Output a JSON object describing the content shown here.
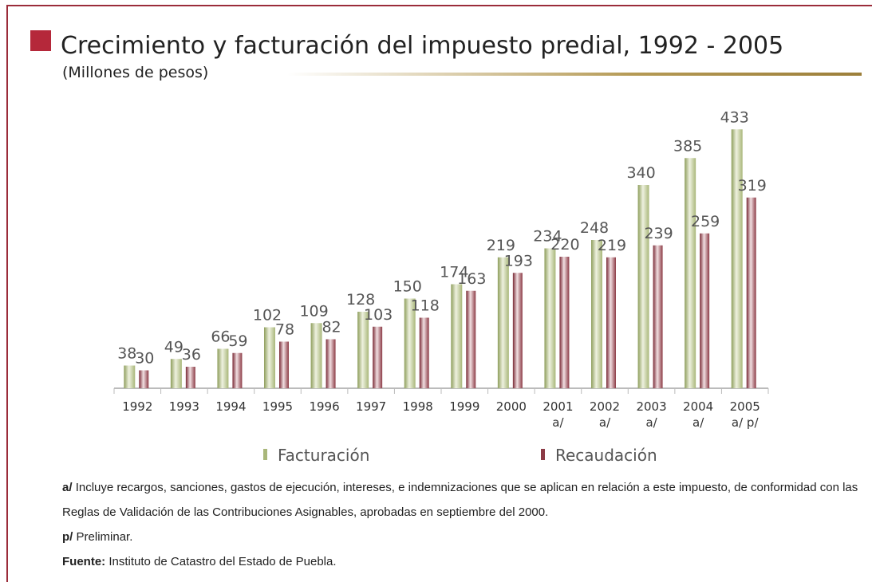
{
  "chart_data": {
    "type": "bar",
    "title": "Crecimiento y facturación del impuesto predial, 1992 - 2005",
    "subtitle": "(Millones de pesos)",
    "categories": [
      "1992",
      "1993",
      "1994",
      "1995",
      "1996",
      "1997",
      "1998",
      "1999",
      "2000",
      "2001 a/",
      "2002 a/",
      "2003 a/",
      "2004 a/",
      "2005 a/ p/"
    ],
    "series": [
      {
        "name": "Facturación",
        "color": "#a9b77a",
        "values": [
          38,
          49,
          66,
          102,
          109,
          128,
          150,
          174,
          219,
          234,
          248,
          340,
          385,
          433
        ]
      },
      {
        "name": "Recaudación",
        "color": "#8c3b46",
        "values": [
          30,
          36,
          59,
          78,
          82,
          103,
          118,
          163,
          193,
          220,
          219,
          239,
          259,
          319
        ]
      }
    ],
    "ylim": [
      0,
      450
    ],
    "legend": "bottom"
  },
  "notes": [
    {
      "label": "a/",
      "text": "Incluye recargos, sanciones, gastos de ejecución, intereses, e indemnizaciones que se aplican en relación a este impuesto, de conformidad con las Reglas de Validación de las Contribuciones Asignables, aprobadas en septiembre del 2000."
    },
    {
      "label": "p/",
      "text": "Preliminar."
    },
    {
      "label": "Fuente:",
      "text": "Instituto de Catastro del Estado de Puebla."
    }
  ]
}
